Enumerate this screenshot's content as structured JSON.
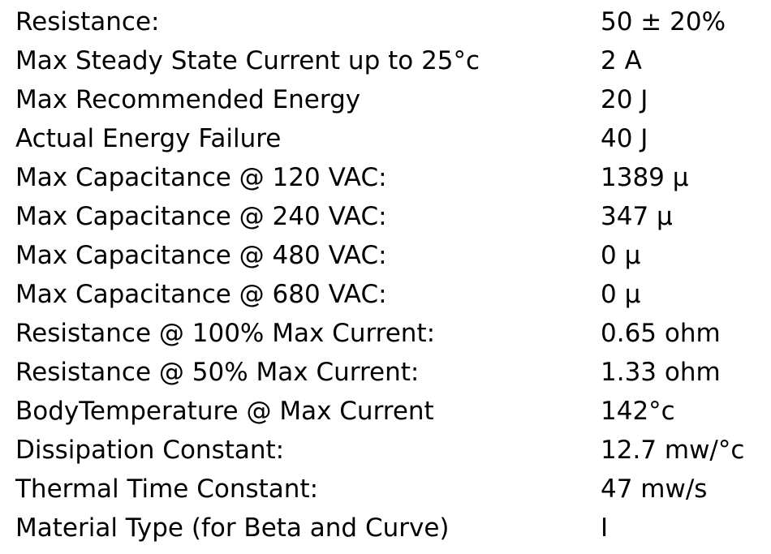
{
  "specs": [
    {
      "label": "Resistance:",
      "value": "50 ± 20%"
    },
    {
      "label": "Max Steady State Current up to 25°c",
      "value": "2 A"
    },
    {
      "label": "Max Recommended Energy",
      "value": "20 J"
    },
    {
      "label": "Actual Energy Failure",
      "value": "40 J"
    },
    {
      "label": "Max Capacitance @ 120 VAC:",
      "value": "1389 µ"
    },
    {
      "label": "Max Capacitance @ 240 VAC:",
      "value": "347 µ"
    },
    {
      "label": "Max Capacitance @ 480 VAC:",
      "value": "0 µ"
    },
    {
      "label": "Max Capacitance @ 680 VAC:",
      "value": "0 µ"
    },
    {
      "label": "Resistance @ 100% Max Current:",
      "value": "0.65 ohm"
    },
    {
      "label": "Resistance @ 50% Max Current:",
      "value": "1.33 ohm"
    },
    {
      "label": "BodyTemperature @ Max Current",
      "value": "142°c"
    },
    {
      "label": "Dissipation Constant:",
      "value": "12.7 mw/°c"
    },
    {
      "label": "Thermal Time Constant:",
      "value": "47 mw/s"
    },
    {
      "label": "Material Type (for Beta and Curve)",
      "value": "I"
    }
  ]
}
